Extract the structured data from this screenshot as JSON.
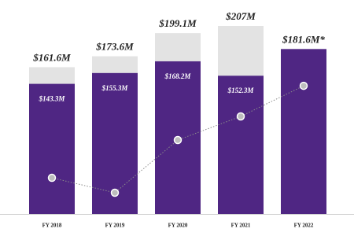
{
  "chart_data": {
    "type": "bar",
    "stacked": true,
    "categories": [
      "FY 2018",
      "FY 2019",
      "FY 2020",
      "FY 2021",
      "FY 2022"
    ],
    "series": [
      {
        "color": "#4f2683",
        "values": [
          143.3,
          155.3,
          168.2,
          152.3,
          181.6
        ],
        "value_labels": [
          "$143.3M",
          "$155.3M",
          "$168.2M",
          "$152.3M",
          null
        ]
      },
      {
        "color": "#e3e3e3",
        "values": [
          18.3,
          18.3,
          30.9,
          54.7,
          0
        ]
      }
    ],
    "totals": {
      "values": [
        161.6,
        173.6,
        199.1,
        207,
        181.6
      ],
      "value_labels": [
        "$161.6M",
        "$173.6M",
        "$199.1M",
        "$207M",
        "$181.6M*"
      ]
    },
    "line": {
      "color": "#8a8a8a",
      "values": [
        39.8,
        23.4,
        81.4,
        107.4,
        141.1
      ]
    },
    "ylim": [
      0,
      207
    ]
  }
}
